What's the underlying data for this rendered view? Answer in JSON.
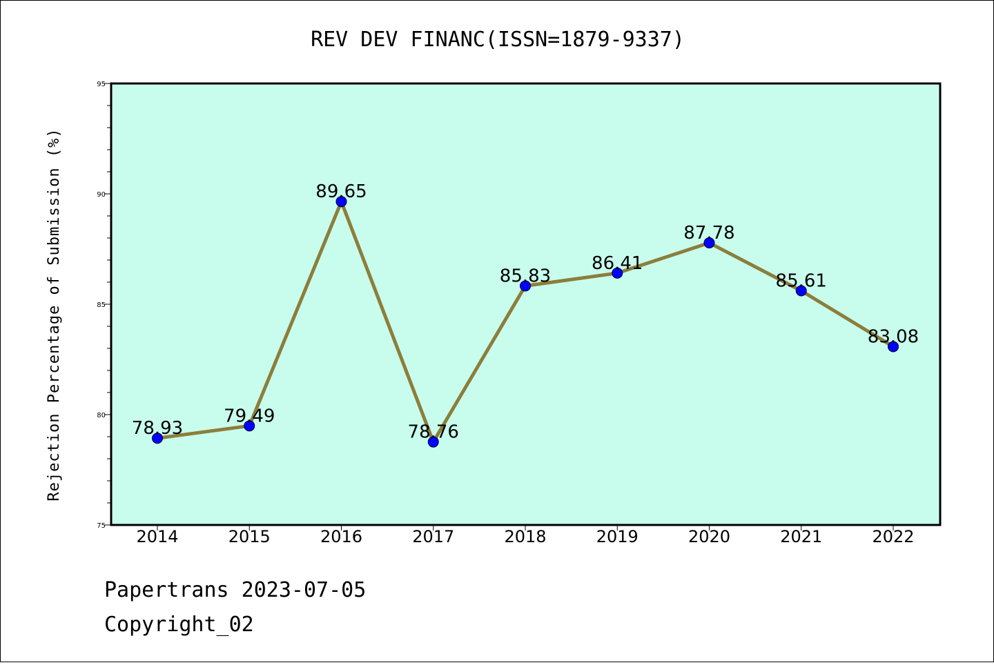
{
  "chart_data": {
    "type": "line",
    "title": "REV DEV FINANC(ISSN=1879-9337)",
    "xlabel": "",
    "ylabel": "Rejection Percentage of Submission (%)",
    "x": [
      "2014",
      "2015",
      "2016",
      "2017",
      "2018",
      "2019",
      "2020",
      "2021",
      "2022"
    ],
    "values": [
      78.93,
      79.49,
      89.65,
      78.76,
      85.83,
      86.41,
      87.78,
      85.61,
      83.08
    ],
    "data_labels": [
      "78.93",
      "79.49",
      "89.65",
      "78.76",
      "85.83",
      "86.41",
      "87.78",
      "85.61",
      "83.08"
    ],
    "ylim": [
      75,
      95
    ],
    "yticks": [
      "75",
      "80",
      "85",
      "90",
      "95"
    ],
    "grid": false,
    "legend": "none",
    "colors": {
      "plot_background": "#c8fdee",
      "line": "#8c7e3a",
      "marker": "#0000ff"
    }
  },
  "footer": {
    "line1": "Papertrans 2023-07-05",
    "line2": "Copyright_02"
  }
}
